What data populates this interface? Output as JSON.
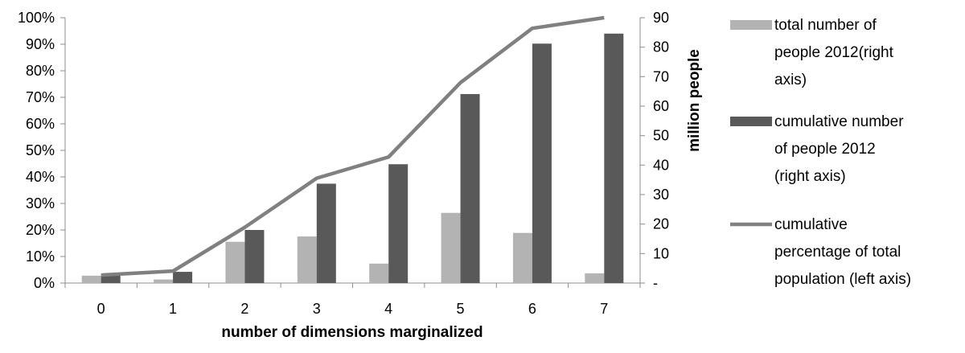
{
  "chart_data": {
    "type": "bar",
    "title": "",
    "xlabel": "number of dimensions marginalized",
    "ylabel_left": "",
    "ylabel_right": "million people",
    "categories": [
      "0",
      "1",
      "2",
      "3",
      "4",
      "5",
      "6",
      "7"
    ],
    "ylim_left": [
      0,
      1
    ],
    "ylim_right": [
      0,
      90
    ],
    "left_ticks": [
      "0%",
      "10%",
      "20%",
      "30%",
      "40%",
      "50%",
      "60%",
      "70%",
      "80%",
      "90%",
      "100%"
    ],
    "right_ticks": [
      "-",
      "10",
      "20",
      "30",
      "40",
      "50",
      "60",
      "70",
      "80",
      "90"
    ],
    "series": [
      {
        "name": "total number of people 2012(right axis)",
        "type": "bar",
        "axis": "right",
        "color": "#b3b3b3",
        "values": [
          2.5,
          1.2,
          14,
          15.8,
          6.6,
          23.8,
          17,
          3.3
        ]
      },
      {
        "name": "cumulative number of people 2012 (right axis)",
        "type": "bar",
        "axis": "right",
        "color": "#595959",
        "values": [
          2.5,
          3.8,
          18,
          33.7,
          40.3,
          64.1,
          81.2,
          84.6
        ]
      },
      {
        "name": "cumulative percentage of total population (left axis)",
        "type": "line",
        "axis": "left",
        "color": "#808080",
        "values": [
          0.03,
          0.045,
          0.21,
          0.395,
          0.475,
          0.755,
          0.96,
          1.0
        ]
      }
    ],
    "legend_position": "right",
    "legend": [
      {
        "lines": [
          "total number of",
          "people 2012(right",
          "axis)"
        ],
        "kind": "bar",
        "color": "#b3b3b3"
      },
      {
        "lines": [
          "cumulative number",
          "of people 2012",
          "(right axis)"
        ],
        "kind": "bar",
        "color": "#595959"
      },
      {
        "lines": [
          "cumulative",
          "percentage of total",
          "population (left axis)"
        ],
        "kind": "line",
        "color": "#808080"
      }
    ],
    "grid": false
  }
}
